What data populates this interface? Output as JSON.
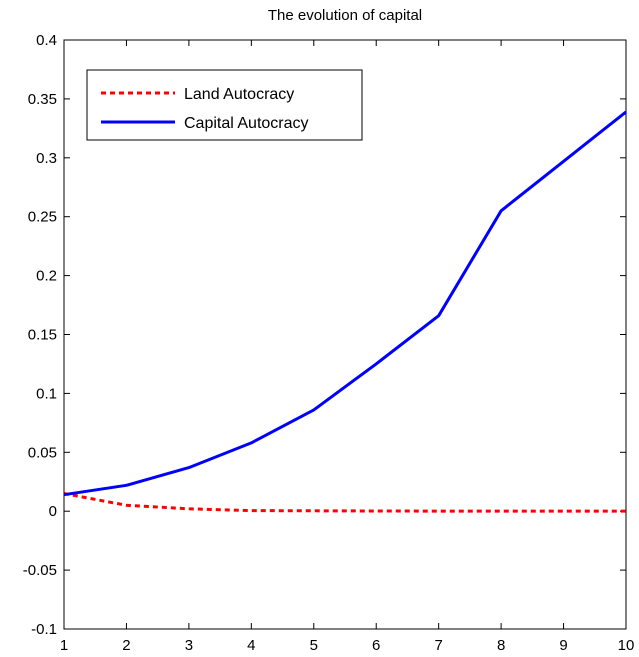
{
  "chart_data": {
    "type": "line",
    "title": "The evolution of capital",
    "xlabel": "",
    "ylabel": "",
    "x": [
      1,
      2,
      3,
      4,
      5,
      6,
      7,
      8,
      9,
      10
    ],
    "xlim": [
      1,
      10
    ],
    "ylim": [
      -0.1,
      0.4
    ],
    "xticks": [
      "1",
      "2",
      "3",
      "4",
      "5",
      "6",
      "7",
      "8",
      "9",
      "10"
    ],
    "yticks": [
      "-0.1",
      "-0.05",
      "0",
      "0.05",
      "0.1",
      "0.15",
      "0.2",
      "0.25",
      "0.3",
      "0.35",
      "0.4"
    ],
    "grid": false,
    "legend_position": "top-left",
    "series": [
      {
        "name": "Land Autocracy",
        "color": "#ff0000",
        "style": "dotted",
        "values": [
          0.015,
          0.005,
          0.002,
          0.0005,
          0.0003,
          0.0002,
          0.0001,
          0.0001,
          0.0001,
          0.0001
        ]
      },
      {
        "name": "Capital Autocracy",
        "color": "#0000ff",
        "style": "solid",
        "values": [
          0.014,
          0.022,
          0.037,
          0.058,
          0.086,
          0.125,
          0.166,
          0.255,
          0.297,
          0.339
        ]
      }
    ]
  }
}
